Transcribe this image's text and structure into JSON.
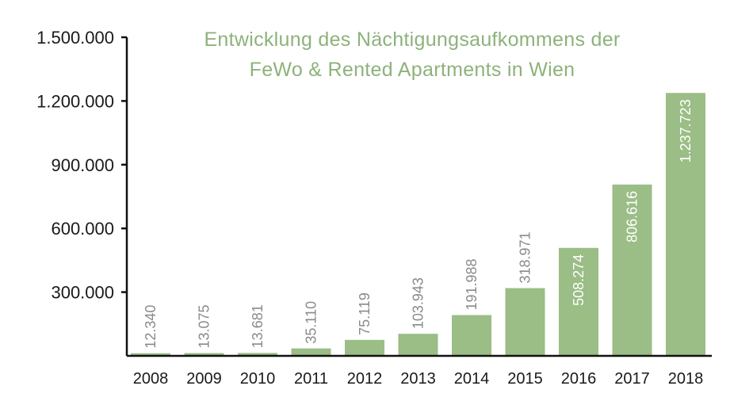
{
  "chart_data": {
    "type": "bar",
    "title_lines": [
      "Entwicklung des Nächtigungsaufkommens der",
      "FeWo & Rented Apartments in Wien"
    ],
    "xlabel": "",
    "ylabel": "",
    "categories": [
      "2008",
      "2009",
      "2010",
      "2011",
      "2012",
      "2013",
      "2014",
      "2015",
      "2016",
      "2017",
      "2018"
    ],
    "values": [
      12340,
      13075,
      13681,
      35110,
      75119,
      103943,
      191988,
      318971,
      508274,
      806616,
      1237723
    ],
    "value_labels": [
      "12.340",
      "13.075",
      "13.681",
      "35.110",
      "75.119",
      "103.943",
      "191.988",
      "318.971",
      "508.274",
      "806.616",
      "1.237.723"
    ],
    "ylim": [
      0,
      1500000
    ],
    "yticks": [
      300000,
      600000,
      900000,
      1200000,
      1500000
    ],
    "ytick_labels": [
      "300.000",
      "600.000",
      "900.000",
      "1.200.000",
      "1.500.000"
    ],
    "grid": false,
    "legend": "none",
    "colors": {
      "bar": "#9bbd86",
      "title": "#8db27b",
      "label_outside": "#8a8a8a",
      "label_inside": "#ffffff",
      "axis": "#111111"
    }
  }
}
